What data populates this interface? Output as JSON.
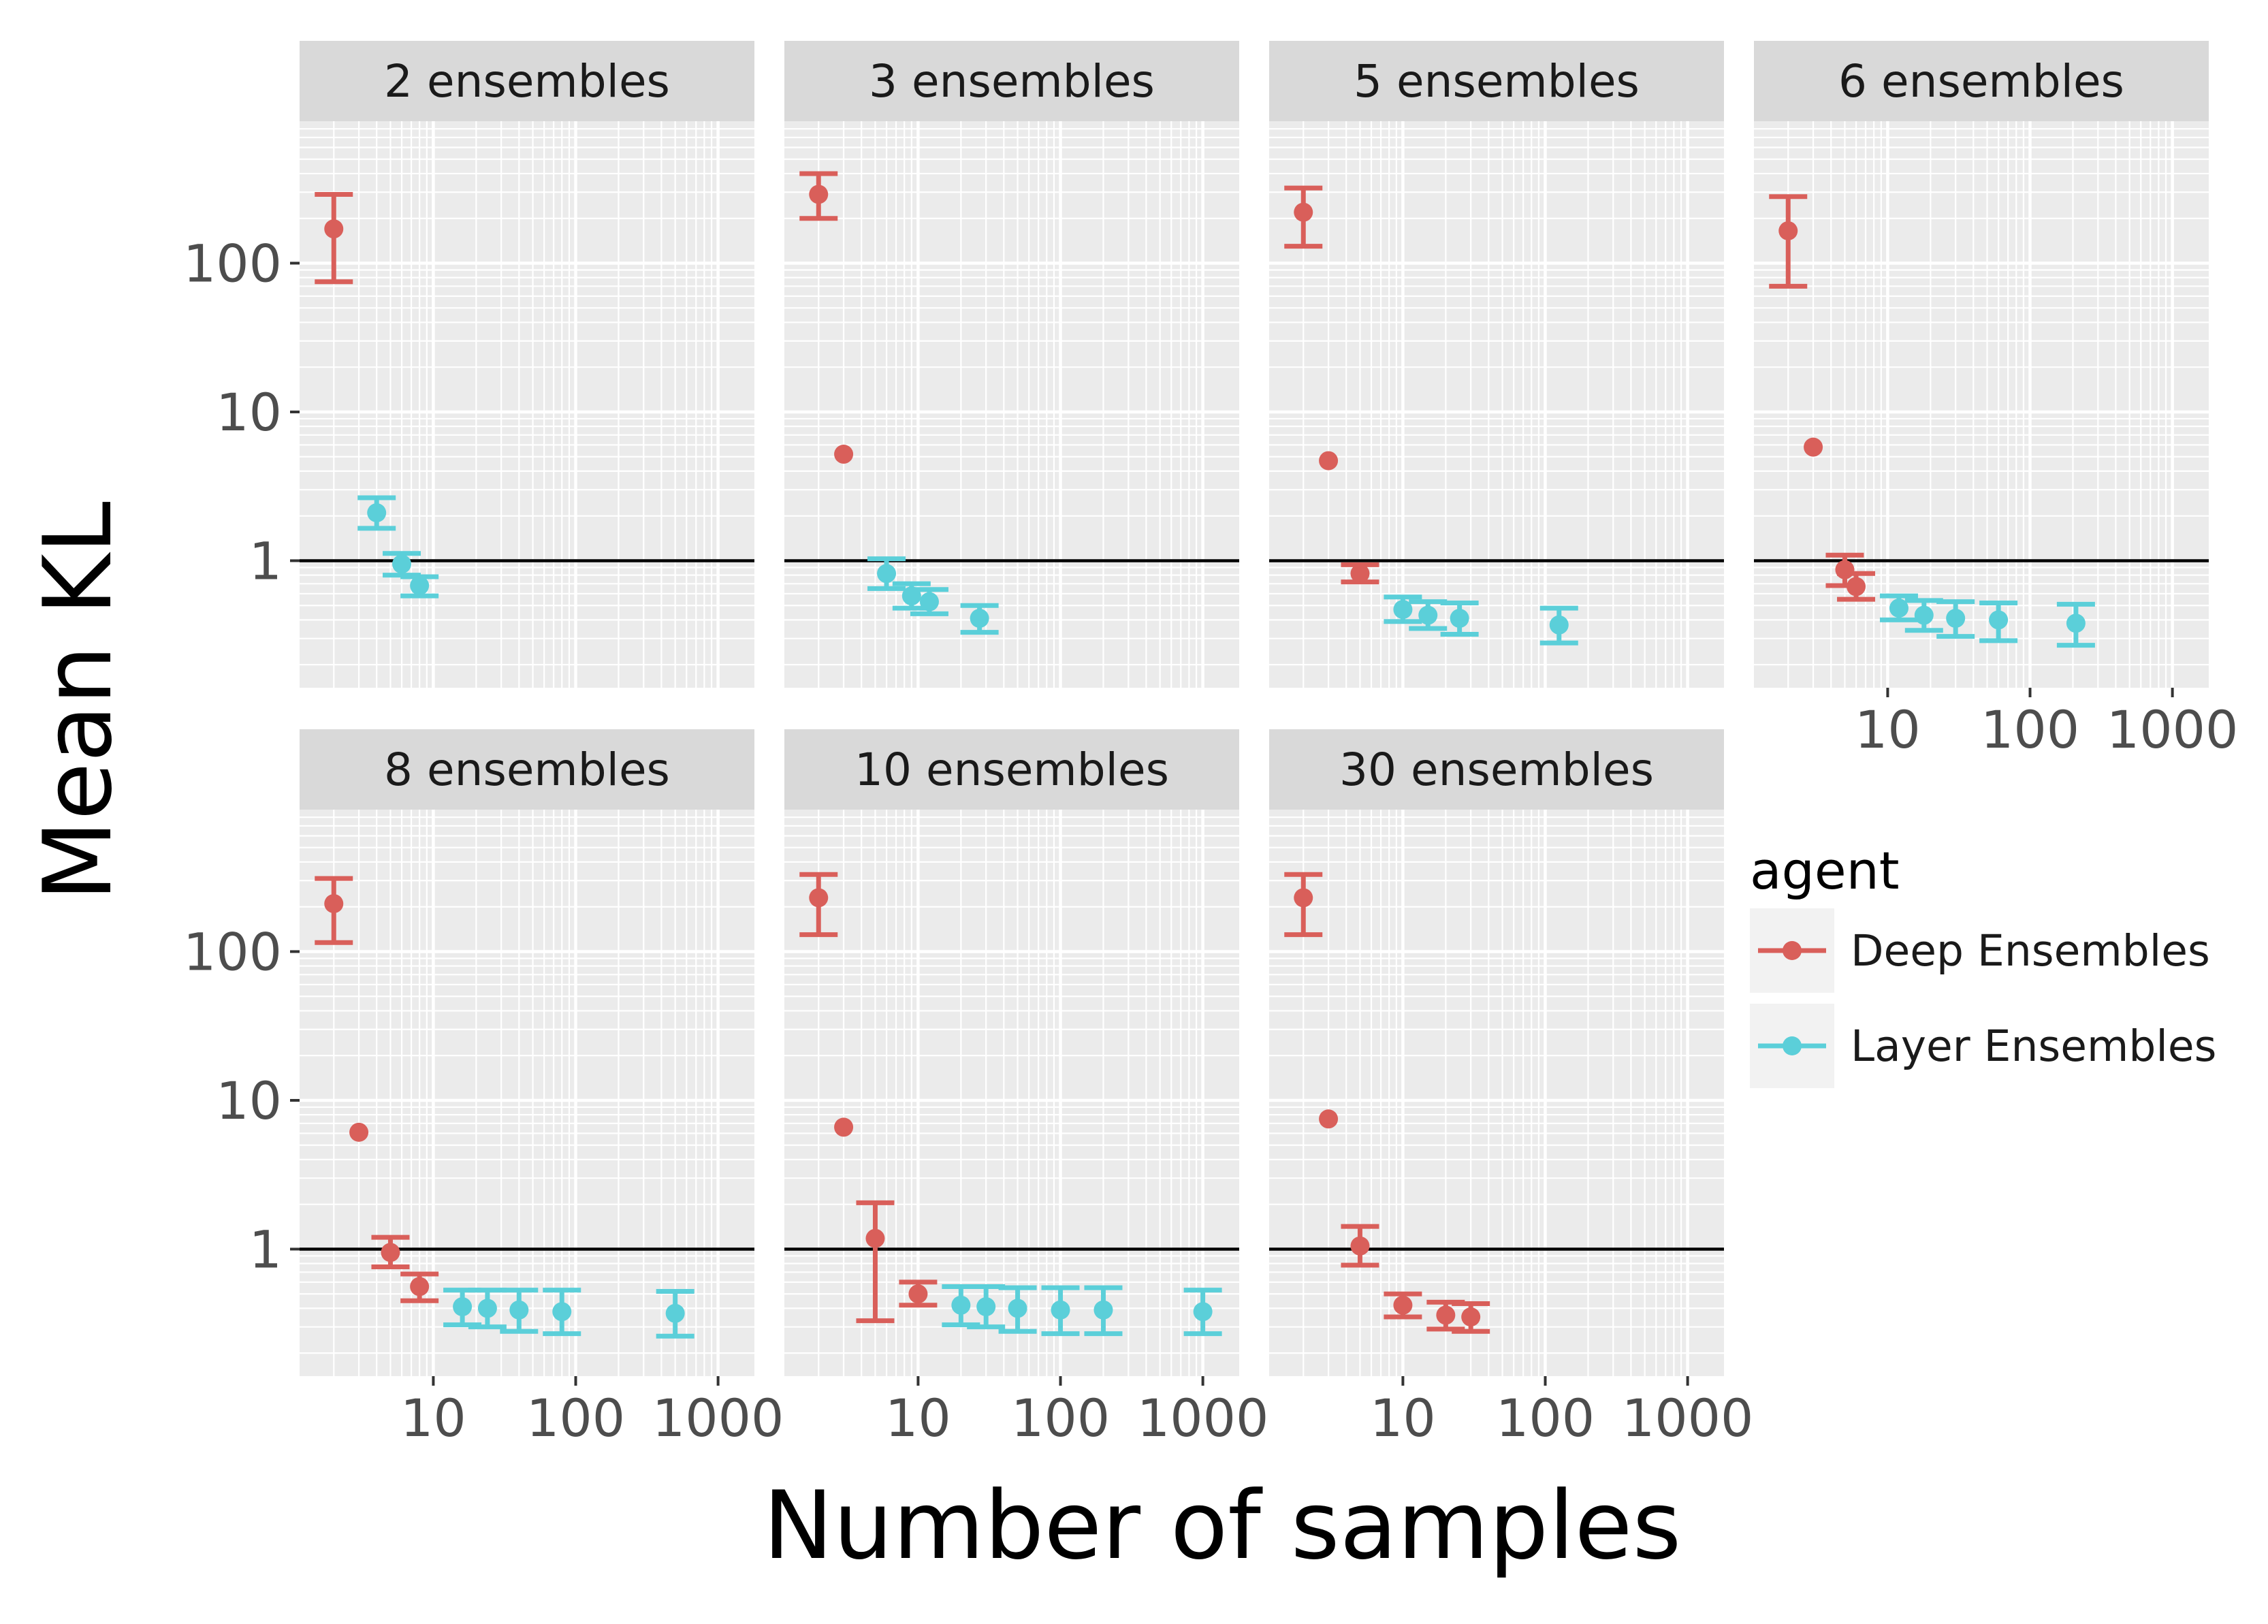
{
  "chart_data": {
    "type": "scatter",
    "subtype": "faceted point with error bars, log-log axes",
    "xlabel": "Number of samples",
    "ylabel": "Mean KL",
    "x_scale": "log10",
    "y_scale": "log10",
    "xlim": [
      1.15,
      1800
    ],
    "ylim": [
      0.14,
      900
    ],
    "x_ticks": [
      10,
      100,
      1000
    ],
    "x_tick_labels": [
      "10",
      "100",
      "1000"
    ],
    "y_ticks": [
      1,
      10,
      100
    ],
    "y_tick_labels": [
      "1",
      "10",
      "100"
    ],
    "reference_line_y": 1,
    "legend": {
      "title": "agent",
      "position": "right",
      "entries": [
        {
          "name": "Deep Ensembles",
          "color": "#d95f5a"
        },
        {
          "name": "Layer Ensembles",
          "color": "#5bcfd9"
        }
      ]
    },
    "facets": [
      {
        "label": "2 ensembles",
        "series": [
          {
            "name": "Deep Ensembles",
            "color": "#d95f5a",
            "points": [
              {
                "x": 2,
                "y": 170,
                "lo": 75,
                "hi": 290
              }
            ]
          },
          {
            "name": "Layer Ensembles",
            "color": "#5bcfd9",
            "points": [
              {
                "x": 4,
                "y": 2.1,
                "lo": 1.65,
                "hi": 2.65
              },
              {
                "x": 6,
                "y": 0.95,
                "lo": 0.8,
                "hi": 1.12
              },
              {
                "x": 8,
                "y": 0.68,
                "lo": 0.58,
                "hi": 0.78
              }
            ]
          }
        ]
      },
      {
        "label": "3 ensembles",
        "series": [
          {
            "name": "Deep Ensembles",
            "color": "#d95f5a",
            "points": [
              {
                "x": 2,
                "y": 290,
                "lo": 200,
                "hi": 400
              },
              {
                "x": 3,
                "y": 5.2,
                "lo": 5.2,
                "hi": 5.2
              }
            ]
          },
          {
            "name": "Layer Ensembles",
            "color": "#5bcfd9",
            "points": [
              {
                "x": 6,
                "y": 0.82,
                "lo": 0.65,
                "hi": 1.03
              },
              {
                "x": 9,
                "y": 0.58,
                "lo": 0.48,
                "hi": 0.7
              },
              {
                "x": 12,
                "y": 0.53,
                "lo": 0.44,
                "hi": 0.64
              },
              {
                "x": 27,
                "y": 0.41,
                "lo": 0.33,
                "hi": 0.5
              }
            ]
          }
        ]
      },
      {
        "label": "5 ensembles",
        "series": [
          {
            "name": "Deep Ensembles",
            "color": "#d95f5a",
            "points": [
              {
                "x": 2,
                "y": 220,
                "lo": 130,
                "hi": 320
              },
              {
                "x": 3,
                "y": 4.7,
                "lo": 4.7,
                "hi": 4.7
              },
              {
                "x": 5,
                "y": 0.82,
                "lo": 0.72,
                "hi": 0.94
              }
            ]
          },
          {
            "name": "Layer Ensembles",
            "color": "#5bcfd9",
            "points": [
              {
                "x": 10,
                "y": 0.47,
                "lo": 0.39,
                "hi": 0.57
              },
              {
                "x": 15,
                "y": 0.43,
                "lo": 0.35,
                "hi": 0.53
              },
              {
                "x": 25,
                "y": 0.41,
                "lo": 0.32,
                "hi": 0.52
              },
              {
                "x": 125,
                "y": 0.37,
                "lo": 0.28,
                "hi": 0.48
              }
            ]
          }
        ]
      },
      {
        "label": "6 ensembles",
        "series": [
          {
            "name": "Deep Ensembles",
            "color": "#d95f5a",
            "points": [
              {
                "x": 2,
                "y": 165,
                "lo": 70,
                "hi": 280
              },
              {
                "x": 3,
                "y": 5.8,
                "lo": 5.8,
                "hi": 5.8
              },
              {
                "x": 5,
                "y": 0.87,
                "lo": 0.68,
                "hi": 1.09
              },
              {
                "x": 6,
                "y": 0.67,
                "lo": 0.55,
                "hi": 0.82
              }
            ]
          },
          {
            "name": "Layer Ensembles",
            "color": "#5bcfd9",
            "points": [
              {
                "x": 12,
                "y": 0.48,
                "lo": 0.4,
                "hi": 0.58
              },
              {
                "x": 18,
                "y": 0.43,
                "lo": 0.34,
                "hi": 0.54
              },
              {
                "x": 30,
                "y": 0.41,
                "lo": 0.31,
                "hi": 0.53
              },
              {
                "x": 60,
                "y": 0.4,
                "lo": 0.29,
                "hi": 0.52
              },
              {
                "x": 210,
                "y": 0.38,
                "lo": 0.27,
                "hi": 0.51
              }
            ]
          }
        ]
      },
      {
        "label": "8 ensembles",
        "series": [
          {
            "name": "Deep Ensembles",
            "color": "#d95f5a",
            "points": [
              {
                "x": 2,
                "y": 210,
                "lo": 115,
                "hi": 310
              },
              {
                "x": 3,
                "y": 6.1,
                "lo": 6.1,
                "hi": 6.1
              },
              {
                "x": 5,
                "y": 0.95,
                "lo": 0.76,
                "hi": 1.2
              },
              {
                "x": 8,
                "y": 0.56,
                "lo": 0.45,
                "hi": 0.68
              }
            ]
          },
          {
            "name": "Layer Ensembles",
            "color": "#5bcfd9",
            "points": [
              {
                "x": 16,
                "y": 0.41,
                "lo": 0.31,
                "hi": 0.53
              },
              {
                "x": 24,
                "y": 0.4,
                "lo": 0.3,
                "hi": 0.53
              },
              {
                "x": 40,
                "y": 0.39,
                "lo": 0.28,
                "hi": 0.53
              },
              {
                "x": 80,
                "y": 0.38,
                "lo": 0.27,
                "hi": 0.53
              },
              {
                "x": 500,
                "y": 0.37,
                "lo": 0.26,
                "hi": 0.52
              }
            ]
          }
        ]
      },
      {
        "label": "10 ensembles",
        "series": [
          {
            "name": "Deep Ensembles",
            "color": "#d95f5a",
            "points": [
              {
                "x": 2,
                "y": 230,
                "lo": 130,
                "hi": 330
              },
              {
                "x": 3,
                "y": 6.6,
                "lo": 6.6,
                "hi": 6.6
              },
              {
                "x": 5,
                "y": 1.18,
                "lo": 0.33,
                "hi": 2.05
              },
              {
                "x": 10,
                "y": 0.5,
                "lo": 0.42,
                "hi": 0.6
              }
            ]
          },
          {
            "name": "Layer Ensembles",
            "color": "#5bcfd9",
            "points": [
              {
                "x": 20,
                "y": 0.42,
                "lo": 0.31,
                "hi": 0.56
              },
              {
                "x": 30,
                "y": 0.41,
                "lo": 0.3,
                "hi": 0.56
              },
              {
                "x": 50,
                "y": 0.4,
                "lo": 0.28,
                "hi": 0.55
              },
              {
                "x": 100,
                "y": 0.39,
                "lo": 0.27,
                "hi": 0.55
              },
              {
                "x": 200,
                "y": 0.39,
                "lo": 0.27,
                "hi": 0.55
              },
              {
                "x": 1000,
                "y": 0.38,
                "lo": 0.27,
                "hi": 0.53
              }
            ]
          }
        ]
      },
      {
        "label": "30 ensembles",
        "series": [
          {
            "name": "Deep Ensembles",
            "color": "#d95f5a",
            "points": [
              {
                "x": 2,
                "y": 230,
                "lo": 130,
                "hi": 330
              },
              {
                "x": 3,
                "y": 7.5,
                "lo": 7.5,
                "hi": 7.5
              },
              {
                "x": 5,
                "y": 1.05,
                "lo": 0.78,
                "hi": 1.42
              },
              {
                "x": 10,
                "y": 0.42,
                "lo": 0.35,
                "hi": 0.5
              },
              {
                "x": 20,
                "y": 0.36,
                "lo": 0.29,
                "hi": 0.44
              },
              {
                "x": 30,
                "y": 0.35,
                "lo": 0.28,
                "hi": 0.43
              }
            ]
          }
        ]
      }
    ]
  }
}
